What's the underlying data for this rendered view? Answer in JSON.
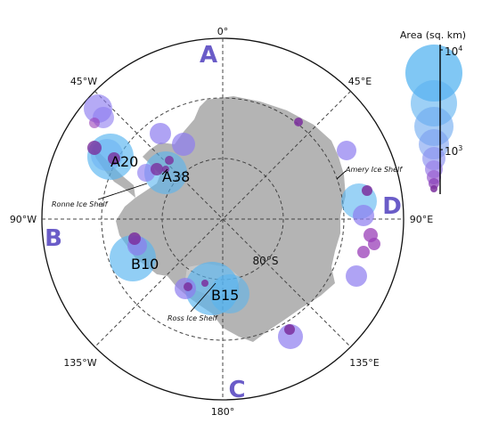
{
  "map": {
    "meridian_labels": {
      "top": "0°",
      "top_right": "45°E",
      "right": "90°E",
      "bottom_right": "135°E",
      "bottom": "180°",
      "bottom_left": "135°W",
      "left": "90°W",
      "top_left": "45°W"
    },
    "parallel_label": "80°S",
    "quadrant_labels": [
      "A",
      "B",
      "C",
      "D"
    ],
    "iceberg_labels": [
      "A20",
      "A38",
      "B10",
      "B15"
    ],
    "ice_shelf_labels": {
      "ronne": "Ronne Ice Shelf",
      "amery": "Amery Ice Shelf",
      "ross": "Ross Ice Shelf"
    },
    "colors": {
      "land": "#b4b4b4",
      "small_berg": "#7b2f9e",
      "medium_berg": "#8d7cf0",
      "large_berg": "#56b4f0",
      "quadrant_text": "#6a5cc8"
    }
  },
  "legend": {
    "title": "Area (sq. km)",
    "tick_high": "10",
    "tick_high_exp": "4",
    "tick_low": "10",
    "tick_low_exp": "3"
  },
  "chart_data": {
    "type": "scatter",
    "projection": "south-polar-stereographic",
    "size_encoding": "Area (sq. km)",
    "annotated_icebergs": [
      {
        "name": "A20",
        "sector": "A/B"
      },
      {
        "name": "A38",
        "sector": "A"
      },
      {
        "name": "B10",
        "sector": "B"
      },
      {
        "name": "B15",
        "sector": "C"
      }
    ],
    "legend_size_range_log10": [
      2,
      4
    ]
  }
}
